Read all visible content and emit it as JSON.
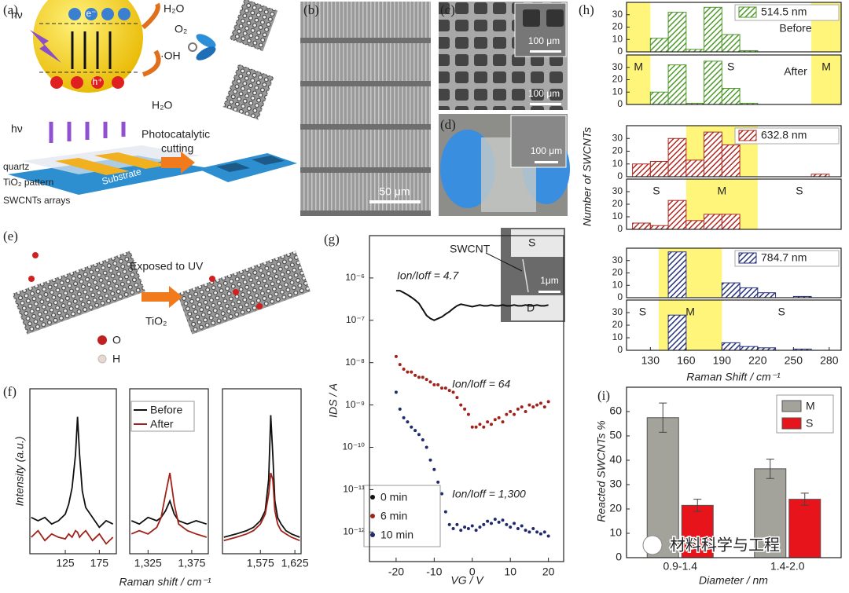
{
  "panel_labels": [
    "(a)",
    "(b)",
    "(c)",
    "(d)",
    "(e)",
    "(f)",
    "(g)",
    "(h)",
    "(i)"
  ],
  "panel_a": {
    "hv_top": "hν",
    "h2o_top": "H₂O",
    "o2": "O₂",
    "oh": "·OH",
    "h2o_bottom": "H₂O",
    "electron": "e⁻",
    "hole": "h⁺",
    "hv_bottom": "hν",
    "cutting_1": "Photocatalytic",
    "cutting_2": "cutting",
    "quartz": "quartz",
    "tio2": "TiO₂ pattern",
    "arrays": "SWCNTs arrays",
    "substrate": "Substrate"
  },
  "panel_b": {
    "scale": "50 μm"
  },
  "panel_c": {
    "inset_scale": "100 μm",
    "scale": "100 μm"
  },
  "panel_d": {
    "scale": "100 μm"
  },
  "panel_e": {
    "exposed": "Exposed to UV",
    "tio2": "TiO₂",
    "o": "O",
    "h": "H"
  },
  "panel_g_inset": {
    "swcnt": "SWCNT",
    "s": "S",
    "d": "D",
    "scale": "1μm"
  },
  "watermark": "材料科学与工程",
  "chart_data": [
    {
      "type": "histogram",
      "x_label": "Raman Shift / cm⁻¹",
      "y_label": "Number of SWCNTs",
      "bins": [
        115,
        130,
        145,
        160,
        175,
        190,
        205,
        220,
        235,
        250,
        265,
        280
      ],
      "xlim": [
        110,
        290
      ],
      "xticks": [
        130,
        160,
        190,
        220,
        250,
        280
      ],
      "ylim": [
        0,
        40
      ],
      "yticks": [
        0,
        10,
        20,
        30
      ],
      "groups": [
        {
          "name": "514.5 nm",
          "color": "#4e9a2a",
          "highlight": [
            [
              110,
              130
            ],
            [
              265,
              290
            ]
          ],
          "region_labels": [
            "M",
            "S",
            "M"
          ],
          "series": [
            {
              "name": "Before",
              "values": [
                0,
                11,
                32,
                2,
                36,
                14,
                1,
                0,
                0,
                0,
                0
              ]
            },
            {
              "name": "After",
              "values": [
                0,
                10,
                32,
                1,
                35,
                13,
                1,
                0,
                0,
                0,
                0
              ]
            }
          ]
        },
        {
          "name": "632.8 nm",
          "color": "#b02a22",
          "highlight": [
            [
              160,
              220
            ]
          ],
          "region_labels": [
            "S",
            "M",
            "S"
          ],
          "series": [
            {
              "values": [
                10,
                12,
                30,
                13,
                35,
                25,
                0,
                0,
                0,
                0,
                2
              ]
            },
            {
              "values": [
                5,
                3,
                23,
                7,
                12,
                12,
                0,
                0,
                0,
                0,
                0
              ]
            }
          ]
        },
        {
          "name": "784.7 nm",
          "color": "#27337e",
          "highlight": [
            [
              137,
              190
            ]
          ],
          "region_labels": [
            "S",
            "M",
            "S"
          ],
          "series": [
            {
              "values": [
                0,
                0,
                37,
                0,
                0,
                12,
                8,
                4,
                0,
                1,
                0
              ]
            },
            {
              "values": [
                0,
                0,
                28,
                0,
                0,
                6,
                3,
                2,
                0,
                1,
                0
              ]
            }
          ]
        }
      ]
    },
    {
      "type": "bar",
      "x_label": "Diameter / nm",
      "y_label": "Reacted SWCNTs %",
      "categories": [
        "0.9-1.4",
        "1.4-2.0"
      ],
      "ylim": [
        0,
        70
      ],
      "yticks": [
        0,
        10,
        20,
        30,
        40,
        50,
        60
      ],
      "legend": "top-right",
      "series": [
        {
          "name": "M",
          "color": "#a3a39c",
          "values": [
            57.5,
            36.5
          ],
          "errors": [
            6,
            4
          ]
        },
        {
          "name": "S",
          "color": "#e8141c",
          "values": [
            21.5,
            24
          ],
          "errors": [
            2.5,
            2.5
          ]
        }
      ]
    },
    {
      "type": "scatter",
      "x_label": "VG / V",
      "y_label": "IDS / A",
      "log_y": true,
      "legend": "bottom-left",
      "xlim": [
        -27,
        24
      ],
      "xticks": [
        -20,
        -10,
        0,
        10,
        20
      ],
      "ylim": [
        1e-05,
        2e-13
      ],
      "yticks": [
        {
          "value": 1e-06,
          "label": "10⁻⁶"
        },
        {
          "value": 1e-07,
          "label": "10⁻⁷"
        },
        {
          "value": 1e-08,
          "label": "10⁻⁸"
        },
        {
          "value": 1e-09,
          "label": "10⁻⁹"
        },
        {
          "value": 1e-10,
          "label": "10⁻¹⁰"
        },
        {
          "value": 1e-11,
          "label": "10⁻¹¹"
        },
        {
          "value": 1e-12,
          "label": "10⁻¹²"
        }
      ],
      "annotations": [
        "Ion/Ioff = 4.7",
        "Ion/Ioff = 64",
        "Ion/Ioff = 1,300"
      ],
      "x": [
        -20,
        -19,
        -18,
        -17,
        -16,
        -15,
        -14,
        -13,
        -12,
        -11,
        -10,
        -9,
        -8,
        -7,
        -6,
        -5,
        -4,
        -3,
        -2,
        -1,
        0,
        1,
        2,
        3,
        4,
        5,
        6,
        7,
        8,
        9,
        10,
        11,
        12,
        13,
        14,
        15,
        16,
        17,
        18,
        19,
        20
      ],
      "series": [
        {
          "name": "0 min",
          "color": "#111111",
          "style": "line",
          "values": [
            5e-07,
            5e-07,
            4.5e-07,
            4e-07,
            3.5e-07,
            3e-07,
            2.5e-07,
            1.8e-07,
            1.3e-07,
            1.1e-07,
            1e-07,
            1.1e-07,
            1.2e-07,
            1.4e-07,
            1.6e-07,
            1.9e-07,
            2.2e-07,
            2.4e-07,
            2.3e-07,
            2.2e-07,
            2.1e-07,
            2.2e-07,
            2.3e-07,
            2.2e-07,
            2.2e-07,
            2.3e-07,
            2.2e-07,
            2.2e-07,
            2.3e-07,
            2.2e-07,
            2.2e-07,
            2.3e-07,
            2.2e-07,
            2.2e-07,
            2.3e-07,
            2.2e-07,
            2.2e-07,
            2.3e-07,
            2.2e-07,
            2.2e-07,
            2.3e-07
          ]
        },
        {
          "name": "6 min",
          "color": "#a0221a",
          "style": "markers",
          "values": [
            1.4e-08,
            9e-09,
            7e-09,
            6e-09,
            6e-09,
            5e-09,
            4.5e-09,
            4.5e-09,
            4e-09,
            3.5e-09,
            3e-09,
            3e-09,
            2.5e-09,
            2.5e-09,
            2.2e-09,
            2e-09,
            1.5e-09,
            1e-09,
            8e-10,
            6e-10,
            3e-10,
            3e-10,
            3.5e-10,
            3e-10,
            4e-10,
            3.5e-10,
            4.5e-10,
            5e-10,
            4e-10,
            6e-10,
            7e-10,
            6e-10,
            8e-10,
            9e-10,
            7e-10,
            1e-09,
            9e-10,
            1e-09,
            1.1e-09,
            9e-10,
            1.2e-09
          ]
        },
        {
          "name": "10 min",
          "color": "#1f2a6e",
          "style": "markers",
          "values": [
            2e-09,
            8e-10,
            5e-10,
            4e-10,
            3e-10,
            2.5e-10,
            2e-10,
            1.5e-10,
            1e-10,
            5e-11,
            3e-11,
            1.5e-11,
            8e-12,
            3e-12,
            1.5e-12,
            1.2e-12,
            1.5e-12,
            1.1e-12,
            1.3e-12,
            1.2e-12,
            1.4e-12,
            1.1e-12,
            1.3e-12,
            1.5e-12,
            1.8e-12,
            1.6e-12,
            2e-12,
            1.7e-12,
            1.9e-12,
            1.5e-12,
            1.3e-12,
            1.6e-12,
            1.2e-12,
            1.4e-12,
            1.1e-12,
            1e-12,
            1.2e-12,
            1e-12,
            9e-13,
            1e-12,
            8e-13
          ]
        }
      ]
    },
    {
      "type": "line",
      "x_label": "Raman shift / cm⁻¹",
      "y_label": "Intensity (a.u.)",
      "xlim": [
        73,
        200
      ],
      "xticks": [
        125,
        175
      ],
      "ylim": [
        0,
        100
      ],
      "x": [
        75,
        85,
        95,
        105,
        115,
        125,
        130,
        135,
        140,
        143,
        146,
        150,
        155,
        165,
        175,
        185,
        195
      ],
      "series": [
        {
          "color": "#111111",
          "values": [
            22,
            20,
            22,
            18,
            20,
            24,
            30,
            40,
            60,
            83,
            60,
            38,
            28,
            22,
            16,
            20,
            18
          ]
        },
        {
          "color": "#a0221a",
          "values": [
            10,
            14,
            8,
            12,
            10,
            9,
            12,
            10,
            14,
            13,
            10,
            12,
            14,
            8,
            12,
            6,
            10
          ]
        }
      ]
    },
    {
      "type": "line",
      "legend": "top-left",
      "xlim": [
        1304,
        1394
      ],
      "xticks": [
        {
          "value": 1325,
          "label": "1,325"
        },
        {
          "value": 1375,
          "label": "1,375"
        }
      ],
      "ylim": [
        0,
        100
      ],
      "x": [
        1306,
        1315,
        1325,
        1335,
        1340,
        1345,
        1350,
        1355,
        1360,
        1370,
        1380,
        1392
      ],
      "series": [
        {
          "name": "Before",
          "color": "#111111",
          "values": [
            20,
            18,
            22,
            20,
            22,
            26,
            32,
            24,
            20,
            18,
            20,
            18
          ]
        },
        {
          "name": "After",
          "color": "#a0221a",
          "values": [
            12,
            14,
            12,
            16,
            22,
            36,
            49,
            30,
            18,
            14,
            12,
            10
          ]
        }
      ]
    },
    {
      "type": "line",
      "xlim": [
        1520,
        1634
      ],
      "xticks": [
        {
          "value": 1575,
          "label": "1,575"
        },
        {
          "value": 1625,
          "label": "1,625"
        }
      ],
      "ylim": [
        0,
        100
      ],
      "x": [
        1522,
        1540,
        1555,
        1565,
        1575,
        1582,
        1587,
        1590,
        1593,
        1596,
        1600,
        1605,
        1612,
        1620,
        1632
      ],
      "series": [
        {
          "color": "#111111",
          "values": [
            10,
            12,
            14,
            16,
            20,
            26,
            45,
            84,
            60,
            32,
            22,
            18,
            14,
            12,
            10
          ]
        },
        {
          "color": "#a0221a",
          "values": [
            8,
            10,
            12,
            14,
            18,
            24,
            36,
            49,
            45,
            26,
            18,
            14,
            12,
            10,
            8
          ]
        }
      ]
    }
  ]
}
